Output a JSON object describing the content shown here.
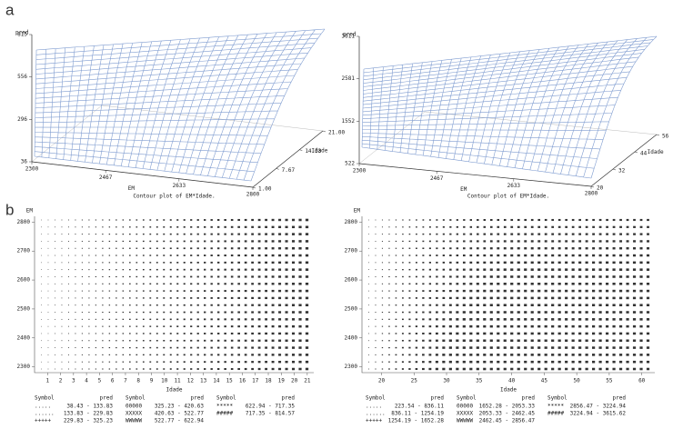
{
  "panel_labels": [
    "a",
    "b"
  ],
  "chart_data": [
    {
      "type": "surface",
      "z_label": "pred",
      "x_label": "EM",
      "y_label": "Idade",
      "xlim": [
        2300,
        2800
      ],
      "xticks": [
        2300,
        2467,
        2633,
        2800
      ],
      "ylim": [
        1,
        21
      ],
      "yticks": [
        {
          "value": 1,
          "label": "1.00"
        },
        {
          "value": 7.67,
          "label": "7.67"
        },
        {
          "value": 14.33,
          "label": "14.33"
        },
        {
          "value": 21,
          "label": "21.00"
        }
      ],
      "zlim": [
        36,
        815
      ],
      "zticks": [
        36,
        296,
        556,
        815
      ],
      "color": "#7f9cd0"
    },
    {
      "type": "surface",
      "z_label": "pred",
      "x_label": "EM",
      "y_label": "Idade",
      "xlim": [
        2300,
        2800
      ],
      "xticks": [
        2300,
        2467,
        2633,
        2800
      ],
      "ylim": [
        20,
        56
      ],
      "yticks": [
        20,
        32,
        44,
        56
      ],
      "zlim": [
        522,
        3611
      ],
      "zticks": [
        522,
        1552,
        2581,
        3611
      ],
      "color": "#7f9cd0"
    },
    {
      "type": "contour",
      "title": "Contour plot of EM*Idade.",
      "x_label": "Idade",
      "y_label": "EM",
      "xlim": [
        0,
        21.5
      ],
      "xticks": [
        1,
        2,
        3,
        4,
        5,
        6,
        7,
        8,
        9,
        10,
        11,
        12,
        13,
        14,
        15,
        16,
        17,
        18,
        19,
        20,
        21
      ],
      "ylim": [
        2280,
        2820
      ],
      "yticks": [
        2300,
        2400,
        2500,
        2600,
        2700,
        2800
      ],
      "legend": {
        "header": [
          "Symbol",
          "pred"
        ],
        "entries": [
          {
            "symbol": ".....",
            "range": "38.43 - 133.83"
          },
          {
            "symbol": "......",
            "range": "133.83 - 229.83"
          },
          {
            "symbol": "+++++",
            "range": "229.83 - 325.23"
          },
          {
            "symbol": "00000",
            "range": "325.23 - 420.63"
          },
          {
            "symbol": "XXXXX",
            "range": "420.63 - 522.77"
          },
          {
            "symbol": "WWWWW",
            "range": "522.77 - 622.94"
          },
          {
            "symbol": "*****",
            "range": "622.94 - 717.35"
          },
          {
            "symbol": "#####",
            "range": "717.35 - 814.57"
          }
        ]
      }
    },
    {
      "type": "contour",
      "title": "Contour plot of EM*Idade.",
      "x_label": "Idade",
      "y_label": "EM",
      "xlim": [
        17,
        62
      ],
      "xticks": [
        20,
        25,
        30,
        35,
        40,
        45,
        50,
        55,
        60
      ],
      "ylim": [
        2280,
        2820
      ],
      "yticks": [
        2300,
        2400,
        2500,
        2600,
        2700,
        2800
      ],
      "legend": {
        "header": [
          "Symbol",
          "pred"
        ],
        "entries": [
          {
            "symbol": ".....",
            "range": "223.54 - 836.11"
          },
          {
            "symbol": "......",
            "range": "836.11 - 1254.19"
          },
          {
            "symbol": "+++++",
            "range": "1254.19 - 1652.28"
          },
          {
            "symbol": "00000",
            "range": "1652.28 - 2053.33"
          },
          {
            "symbol": "XXXXX",
            "range": "2053.33 - 2462.45"
          },
          {
            "symbol": "WWWWW",
            "range": "2462.45 - 2856.47"
          },
          {
            "symbol": "*****",
            "range": "2856.47 - 3224.94"
          },
          {
            "symbol": "#####",
            "range": "3224.94 - 3615.62"
          }
        ]
      }
    }
  ]
}
